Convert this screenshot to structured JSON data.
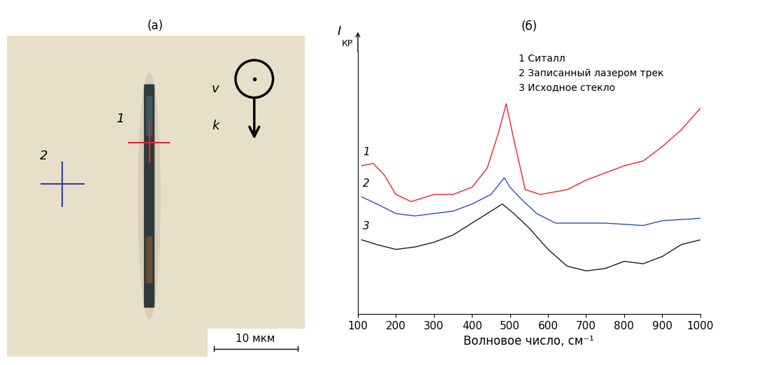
{
  "panel_a": {
    "label": "(a)",
    "markers": [
      {
        "label": "1",
        "color": "#e0262b"
      },
      {
        "label": "2",
        "color": "#2e3f9e"
      }
    ],
    "velocity_label": "v",
    "wave_vector_label": "k",
    "scale_bar": "10 мкм"
  },
  "chart_data": {
    "type": "line",
    "title": "(б)",
    "y_label": "I",
    "y_label_sub": "КР",
    "x_label": "Волновое число, см⁻¹",
    "xlim": [
      100,
      1000
    ],
    "xticks": [
      100,
      200,
      300,
      400,
      500,
      600,
      700,
      800,
      900,
      1000
    ],
    "ylim": [
      0,
      11
    ],
    "tick_labels": "x",
    "grid": false,
    "series": [
      {
        "name": "1 Ситалл",
        "curve_label": "1",
        "color": "#e0262b",
        "x": [
          110,
          140,
          170,
          200,
          240,
          300,
          350,
          400,
          440,
          470,
          490,
          510,
          540,
          580,
          650,
          700,
          750,
          800,
          850,
          900,
          950,
          1000
        ],
        "values": [
          6.2,
          6.3,
          5.8,
          5.0,
          4.7,
          5.0,
          5.0,
          5.3,
          6.1,
          7.6,
          8.8,
          7.3,
          5.2,
          5.0,
          5.2,
          5.6,
          5.9,
          6.2,
          6.4,
          7.0,
          7.7,
          8.6
        ]
      },
      {
        "name": "2 Записанный лазером трек",
        "curve_label": "2",
        "color": "#2e4fa5",
        "x": [
          110,
          150,
          200,
          250,
          300,
          350,
          400,
          450,
          485,
          500,
          530,
          570,
          620,
          680,
          750,
          850,
          900,
          1000
        ],
        "values": [
          4.9,
          4.6,
          4.2,
          4.1,
          4.2,
          4.3,
          4.6,
          5.0,
          5.7,
          5.3,
          4.8,
          4.2,
          3.8,
          3.8,
          3.8,
          3.7,
          3.9,
          4.0
        ]
      },
      {
        "name": "3 Исходное стекло",
        "curve_label": "3",
        "color": "#1a1a1a",
        "x": [
          110,
          150,
          200,
          250,
          300,
          350,
          400,
          450,
          480,
          510,
          550,
          600,
          650,
          700,
          750,
          800,
          850,
          900,
          950,
          1000
        ],
        "values": [
          3.1,
          2.9,
          2.7,
          2.8,
          3.0,
          3.3,
          3.8,
          4.3,
          4.6,
          4.2,
          3.6,
          2.7,
          2.0,
          1.8,
          1.9,
          2.2,
          2.1,
          2.4,
          2.9,
          3.1
        ]
      }
    ]
  }
}
